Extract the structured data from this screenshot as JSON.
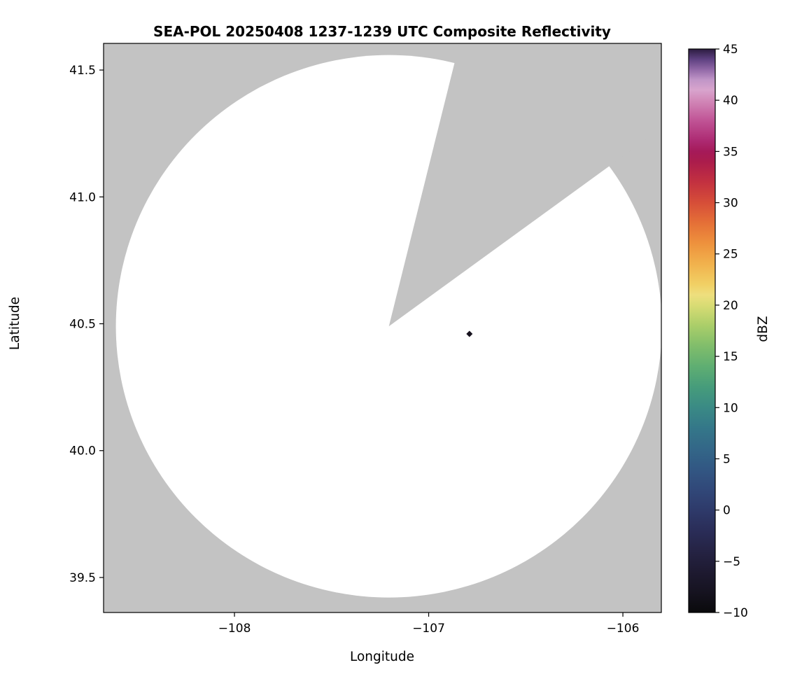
{
  "chart_data": {
    "type": "heatmap",
    "subtype": "radar-composite-reflectivity-map",
    "title": "SEA-POL 20250408 1237-1239 UTC Composite Reflectivity",
    "xlabel": "Longitude",
    "ylabel": "Latitude",
    "xlim": [
      -108.674,
      -105.802
    ],
    "ylim": [
      39.362,
      41.605
    ],
    "grid": false,
    "xticks": {
      "values": [
        -108,
        -107,
        -106
      ],
      "labels": [
        "−108",
        "−107",
        "−106"
      ]
    },
    "yticks": {
      "values": [
        41.5,
        41.0,
        40.5,
        40.0,
        39.5
      ],
      "labels": [
        "41.5",
        "41.0",
        "40.5",
        "40.0",
        "39.5"
      ]
    },
    "colors": {
      "masked_region": "#c3c3c3",
      "coverage_region": "#ffffff",
      "axes": "#000000",
      "page_background": "#ffffff"
    },
    "radar": {
      "center": {
        "lon": -107.205,
        "lat": 40.49
      },
      "range_km": 119,
      "blocked_sector_deg": {
        "from_azimuth": 14,
        "to_azimuth": 54
      }
    },
    "echoes": [
      {
        "lon": -106.79,
        "lat": 40.46,
        "color": "#17121e"
      }
    ],
    "colorbar": {
      "label": "dBZ",
      "min": -10,
      "max": 45,
      "ticks": {
        "values": [
          45,
          40,
          35,
          30,
          25,
          20,
          15,
          10,
          5,
          0,
          -5,
          -10
        ],
        "labels": [
          "45",
          "40",
          "35",
          "30",
          "25",
          "20",
          "15",
          "10",
          "5",
          "0",
          "−5",
          "−10"
        ]
      },
      "colormap": "spectral-like",
      "stops": [
        {
          "v": -10,
          "c": "#0a0a0c"
        },
        {
          "v": -8,
          "c": "#161320"
        },
        {
          "v": -6,
          "c": "#1e1a31"
        },
        {
          "v": -4,
          "c": "#252344"
        },
        {
          "v": -2,
          "c": "#2a2d58"
        },
        {
          "v": 0,
          "c": "#2e3a6a"
        },
        {
          "v": 2,
          "c": "#314879"
        },
        {
          "v": 4,
          "c": "#325783"
        },
        {
          "v": 6,
          "c": "#336788"
        },
        {
          "v": 8,
          "c": "#347789"
        },
        {
          "v": 10,
          "c": "#3a8a85"
        },
        {
          "v": 12,
          "c": "#469c7b"
        },
        {
          "v": 14,
          "c": "#5fae72"
        },
        {
          "v": 16,
          "c": "#80bd6b"
        },
        {
          "v": 18,
          "c": "#aace69"
        },
        {
          "v": 20,
          "c": "#d9dc74"
        },
        {
          "v": 21,
          "c": "#eedf7e"
        },
        {
          "v": 22,
          "c": "#f1d065"
        },
        {
          "v": 24,
          "c": "#f1b24d"
        },
        {
          "v": 26,
          "c": "#ee923d"
        },
        {
          "v": 28,
          "c": "#e57037"
        },
        {
          "v": 30,
          "c": "#d64e38"
        },
        {
          "v": 32,
          "c": "#c33140"
        },
        {
          "v": 34,
          "c": "#ab1c4c"
        },
        {
          "v": 35,
          "c": "#a51a59"
        },
        {
          "v": 36,
          "c": "#ac2971"
        },
        {
          "v": 38,
          "c": "#c05395"
        },
        {
          "v": 40,
          "c": "#d289b9"
        },
        {
          "v": 41,
          "c": "#d8a4cd"
        },
        {
          "v": 42,
          "c": "#c095c7"
        },
        {
          "v": 43,
          "c": "#9168a7"
        },
        {
          "v": 44,
          "c": "#5e4181"
        },
        {
          "v": 45,
          "c": "#2c1c40"
        }
      ]
    }
  }
}
